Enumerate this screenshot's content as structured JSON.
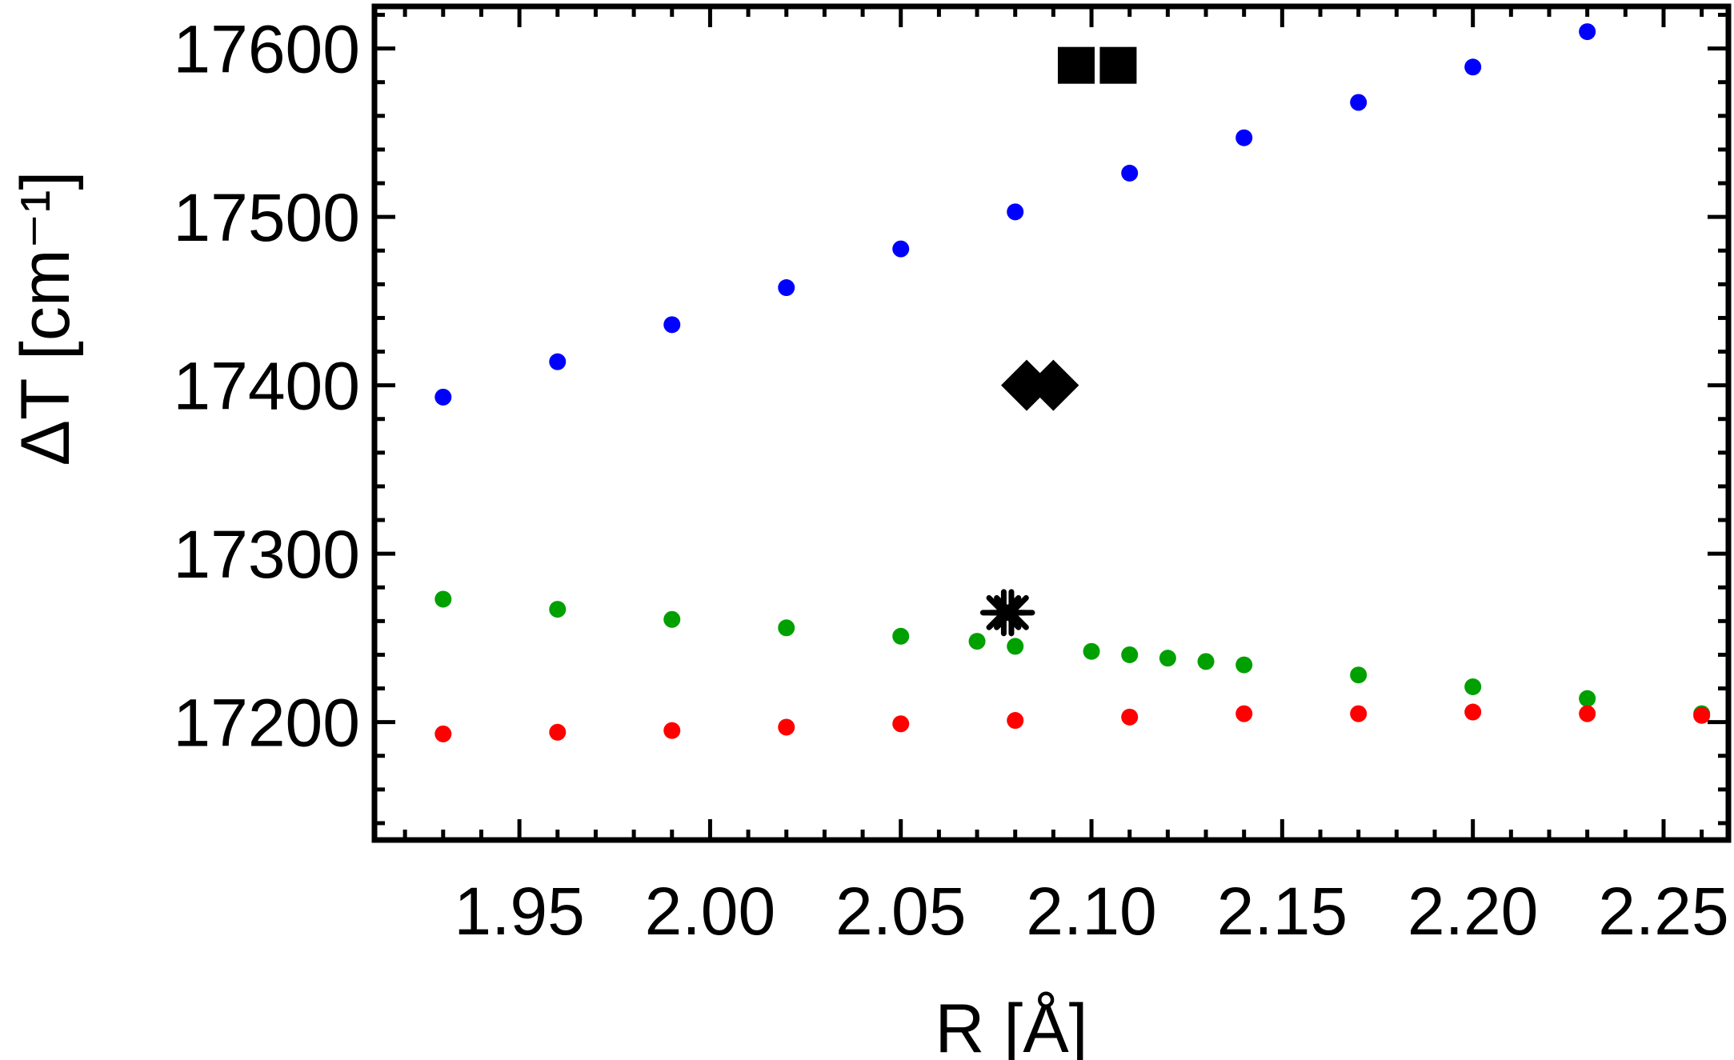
{
  "chart_data": {
    "type": "scatter",
    "xlabel": "R [Å]",
    "ylabel": "ΔT [cm⁻¹]",
    "xlim": [
      1.912,
      2.267
    ],
    "ylim": [
      17130,
      17625
    ],
    "x_ticks": [
      1.95,
      2.0,
      2.05,
      2.1,
      2.15,
      2.2,
      2.25
    ],
    "x_tick_labels": [
      "1.95",
      "2.00",
      "2.05",
      "2.10",
      "2.15",
      "2.20",
      "2.25"
    ],
    "y_ticks": [
      17200,
      17300,
      17400,
      17500,
      17600
    ],
    "y_tick_labels": [
      "17200",
      "17300",
      "17400",
      "17500",
      "17600"
    ],
    "grid": false,
    "frame": true,
    "series": [
      {
        "color": "#0000ff",
        "marker": "circle",
        "points": [
          [
            1.93,
            17393
          ],
          [
            1.96,
            17414
          ],
          [
            1.99,
            17436
          ],
          [
            2.02,
            17458
          ],
          [
            2.05,
            17481
          ],
          [
            2.08,
            17503
          ],
          [
            2.11,
            17526
          ],
          [
            2.14,
            17547
          ],
          [
            2.17,
            17568
          ],
          [
            2.2,
            17589
          ],
          [
            2.23,
            17610
          ]
        ]
      },
      {
        "color": "#00a000",
        "marker": "circle",
        "points": [
          [
            1.93,
            17273
          ],
          [
            1.96,
            17267
          ],
          [
            1.99,
            17261
          ],
          [
            2.02,
            17256
          ],
          [
            2.05,
            17251
          ],
          [
            2.07,
            17248
          ],
          [
            2.08,
            17245
          ],
          [
            2.1,
            17242
          ],
          [
            2.11,
            17240
          ],
          [
            2.12,
            17238
          ],
          [
            2.13,
            17236
          ],
          [
            2.14,
            17234
          ],
          [
            2.17,
            17228
          ],
          [
            2.2,
            17221
          ],
          [
            2.23,
            17214
          ],
          [
            2.26,
            17205
          ]
        ]
      },
      {
        "color": "#ff0000",
        "marker": "circle",
        "points": [
          [
            1.93,
            17193
          ],
          [
            1.96,
            17194
          ],
          [
            1.99,
            17195
          ],
          [
            2.02,
            17197
          ],
          [
            2.05,
            17199
          ],
          [
            2.08,
            17201
          ],
          [
            2.11,
            17203
          ],
          [
            2.14,
            17205
          ],
          [
            2.17,
            17205
          ],
          [
            2.2,
            17206
          ],
          [
            2.23,
            17205
          ],
          [
            2.26,
            17204
          ]
        ]
      }
    ],
    "reference_markers": [
      {
        "marker": "square",
        "color": "#000000",
        "points": [
          [
            2.096,
            17590
          ],
          [
            2.107,
            17590
          ]
        ]
      },
      {
        "marker": "diamond",
        "color": "#000000",
        "points": [
          [
            2.083,
            17400
          ],
          [
            2.09,
            17400
          ]
        ]
      },
      {
        "marker": "star",
        "color": "#000000",
        "points": [
          [
            2.077,
            17265
          ],
          [
            2.079,
            17265
          ]
        ]
      }
    ]
  }
}
